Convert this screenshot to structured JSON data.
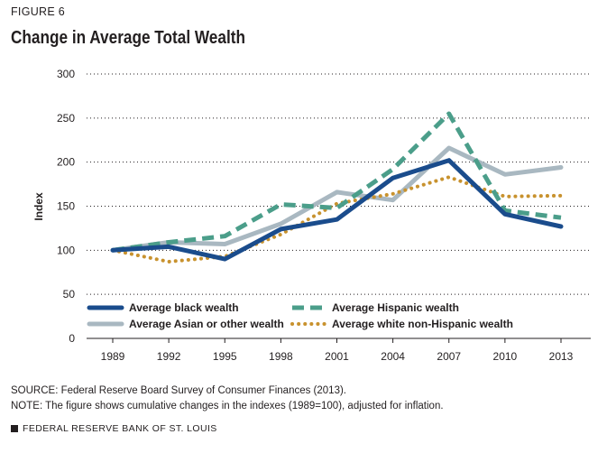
{
  "figure_label": "FIGURE 6",
  "chart_data": {
    "type": "line",
    "title": "Change in Average Total Wealth",
    "xlabel": "",
    "ylabel": "Index",
    "categories": [
      "1989",
      "1992",
      "1995",
      "1998",
      "2001",
      "2004",
      "2007",
      "2010",
      "2013"
    ],
    "ylim": [
      0,
      300
    ],
    "yticks": [
      0,
      50,
      100,
      150,
      200,
      250,
      300
    ],
    "grid": true,
    "legend_position": "bottom-left",
    "series": [
      {
        "name": "Average black wealth",
        "values": [
          100,
          104,
          90,
          124,
          135,
          182,
          202,
          141,
          127
        ],
        "color": "#1a4c8c",
        "style": "solid-thick"
      },
      {
        "name": "Average Hispanic wealth",
        "values": [
          100,
          109,
          116,
          152,
          148,
          192,
          255,
          145,
          137
        ],
        "color": "#4b9e8a",
        "style": "dashed"
      },
      {
        "name": "Average Asian or other wealth",
        "values": [
          100,
          109,
          107,
          130,
          166,
          157,
          216,
          186,
          194
        ],
        "color": "#a9b8c1",
        "style": "solid"
      },
      {
        "name": "Average white non-Hispanic wealth",
        "values": [
          100,
          87,
          93,
          118,
          153,
          164,
          183,
          161,
          162
        ],
        "color": "#c8922e",
        "style": "dotted"
      }
    ]
  },
  "source": "SOURCE: Federal Reserve Board Survey of Consumer Finances (2013).",
  "note": "NOTE: The figure shows cumulative changes in the indexes (1989=100), adjusted for inflation.",
  "footer": "FEDERAL RESERVE BANK OF ST. LOUIS"
}
